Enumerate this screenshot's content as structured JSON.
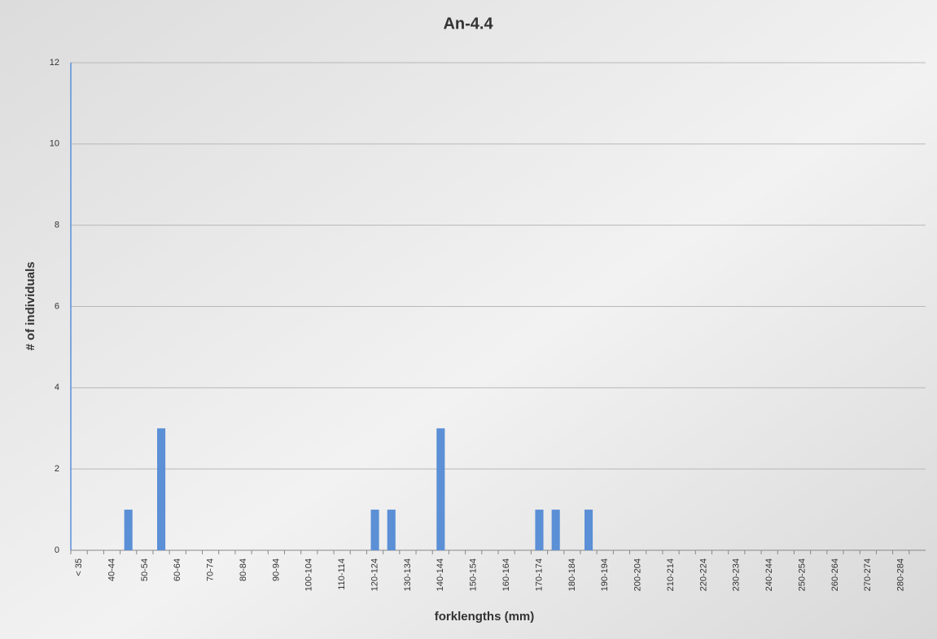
{
  "chart_data": {
    "type": "bar",
    "title": "An-4.4",
    "x_label": "forklengths (mm)",
    "y_label": "# of individuals",
    "categories": [
      "< 35",
      null,
      "40-44",
      null,
      "50-54",
      null,
      "60-64",
      null,
      "70-74",
      null,
      "80-84",
      null,
      "90-94",
      null,
      "100-104",
      null,
      "110-114",
      null,
      "120-124",
      null,
      "130-134",
      null,
      "140-144",
      null,
      "150-154",
      null,
      "160-164",
      null,
      "170-174",
      null,
      "180-184",
      null,
      "190-194",
      null,
      "200-204",
      null,
      "210-214",
      null,
      "220-224",
      null,
      "230-234",
      null,
      "240-244",
      null,
      "250-254",
      null,
      "260-264",
      null,
      "270-274",
      null,
      "280-284",
      null
    ],
    "values": [
      0,
      0,
      0,
      1,
      0,
      3,
      0,
      0,
      0,
      0,
      0,
      0,
      0,
      0,
      0,
      0,
      0,
      0,
      1,
      1,
      0,
      0,
      3,
      0,
      0,
      0,
      0,
      0,
      1,
      1,
      0,
      1,
      0,
      0,
      0,
      0,
      0,
      0,
      0,
      0,
      0,
      0,
      0,
      0,
      0,
      0,
      0,
      0,
      0,
      0,
      0,
      0
    ],
    "color": "#5b8fd6",
    "ylim": [
      0,
      12
    ],
    "yticks": [
      0,
      2,
      4,
      6,
      8,
      10,
      12
    ],
    "grid": true
  }
}
